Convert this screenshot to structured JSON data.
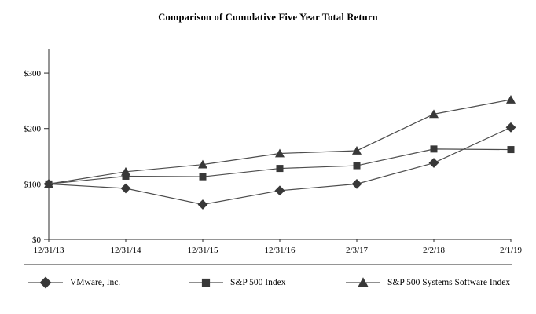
{
  "title": "Comparison of Cumulative Five Year Total Return",
  "chart_data": {
    "type": "line",
    "x": [
      "12/31/13",
      "12/31/14",
      "12/31/15",
      "12/31/16",
      "2/3/17",
      "2/2/18",
      "2/1/19"
    ],
    "series": [
      {
        "name": "VMware, Inc.",
        "marker": "diamond",
        "values": [
          100,
          92,
          63,
          88,
          100,
          138,
          202
        ]
      },
      {
        "name": "S&P 500 Index",
        "marker": "square",
        "values": [
          100,
          114,
          113,
          128,
          133,
          163,
          162
        ]
      },
      {
        "name": "S&P 500 Systems Software Index",
        "marker": "triangle",
        "values": [
          100,
          122,
          135,
          155,
          160,
          226,
          252
        ]
      }
    ],
    "y_ticks": [
      {
        "value": 0,
        "label": "$0"
      },
      {
        "value": 100,
        "label": "$100"
      },
      {
        "value": 200,
        "label": "$200"
      },
      {
        "value": 300,
        "label": "$300"
      }
    ],
    "ylim": [
      0,
      344
    ],
    "grid": false,
    "legend_position": "bottom",
    "line_color": "#4d4d4d",
    "marker_color": "#383838",
    "axis_color": "#2b2b2b"
  }
}
